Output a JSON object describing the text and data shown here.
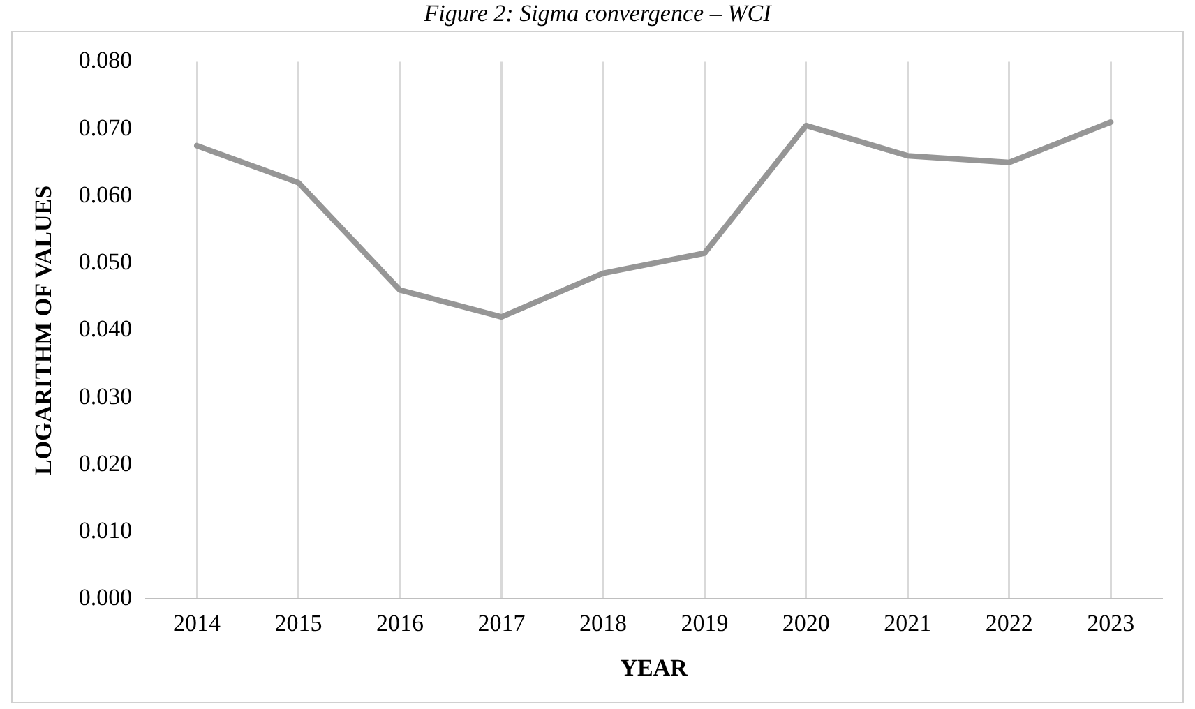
{
  "chart_data": {
    "type": "line",
    "title": "Figure 2: Sigma convergence – WCI",
    "xlabel": "YEAR",
    "ylabel": "LOGARITHM OF VALUES",
    "categories": [
      "2014",
      "2015",
      "2016",
      "2017",
      "2018",
      "2019",
      "2020",
      "2021",
      "2022",
      "2023"
    ],
    "series": [
      {
        "color": "#969696",
        "values": [
          0.0675,
          0.062,
          0.046,
          0.042,
          0.0485,
          0.0515,
          0.0705,
          0.066,
          0.065,
          0.071
        ]
      }
    ],
    "ylim": [
      0,
      0.08
    ],
    "yticks": [
      {
        "value": 0,
        "label": "0.000"
      },
      {
        "value": 0.01,
        "label": "0.010"
      },
      {
        "value": 0.02,
        "label": "0.020"
      },
      {
        "value": 0.03,
        "label": "0.030"
      },
      {
        "value": 0.04,
        "label": "0.040"
      },
      {
        "value": 0.05,
        "label": "0.050"
      },
      {
        "value": 0.06,
        "label": "0.060"
      },
      {
        "value": 0.07,
        "label": "0.070"
      },
      {
        "value": 0.08,
        "label": "0.080"
      }
    ],
    "grid": "x",
    "legend": false,
    "marker": "none",
    "line_style": "solid"
  }
}
